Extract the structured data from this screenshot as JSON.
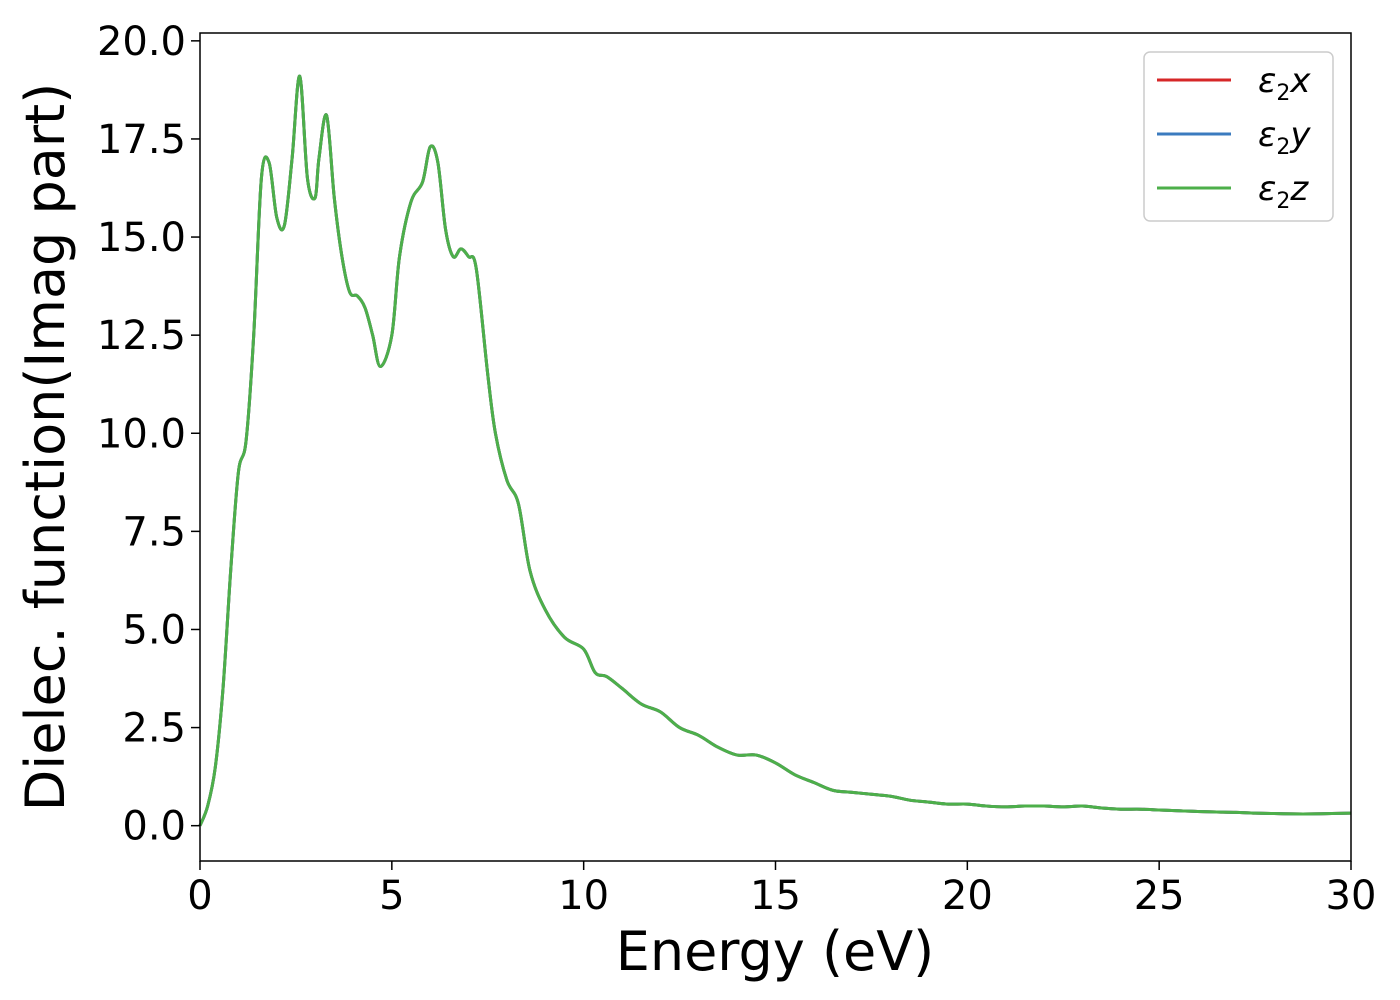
{
  "chart_data": {
    "type": "line",
    "title": "",
    "xlabel": "Energy (eV)",
    "ylabel": "Dielec. function(Imag part)",
    "xlim": [
      0,
      30
    ],
    "ylim": [
      -0.9,
      20.2
    ],
    "xticks": [
      0,
      5,
      10,
      15,
      20,
      25,
      30
    ],
    "yticks": [
      0.0,
      2.5,
      5.0,
      7.5,
      10.0,
      12.5,
      15.0,
      17.5,
      20.0
    ],
    "xtick_labels": [
      "0",
      "5",
      "10",
      "15",
      "20",
      "25",
      "30"
    ],
    "ytick_labels": [
      "0.0",
      "2.5",
      "5.0",
      "7.5",
      "10.0",
      "12.5",
      "15.0",
      "17.5",
      "20.0"
    ],
    "grid": false,
    "legend_position": "top-right",
    "x": [
      0,
      0.2,
      0.4,
      0.6,
      0.8,
      1.0,
      1.2,
      1.4,
      1.6,
      1.8,
      2.0,
      2.2,
      2.4,
      2.6,
      2.8,
      3.0,
      3.1,
      3.3,
      3.5,
      3.7,
      3.9,
      4.1,
      4.3,
      4.5,
      4.7,
      5.0,
      5.2,
      5.5,
      5.8,
      6.0,
      6.2,
      6.4,
      6.6,
      6.8,
      7.0,
      7.2,
      7.5,
      7.7,
      8.0,
      8.3,
      8.6,
      9.0,
      9.5,
      10.0,
      10.3,
      10.6,
      11.0,
      11.5,
      12.0,
      12.5,
      13.0,
      13.5,
      14.0,
      14.5,
      15.0,
      15.5,
      16.0,
      16.5,
      17.0,
      17.5,
      18.0,
      18.5,
      19.0,
      19.5,
      20.0,
      20.5,
      21.0,
      21.5,
      22.0,
      22.5,
      23.0,
      23.5,
      24.0,
      24.5,
      25.0,
      25.5,
      26.0,
      26.5,
      27.0,
      27.5,
      28.0,
      28.5,
      29.0,
      29.5,
      30.0
    ],
    "series": [
      {
        "name": "x",
        "color": "#d62728",
        "values": [
          0.0,
          0.5,
          1.5,
          3.5,
          6.5,
          9.0,
          9.8,
          12.5,
          16.5,
          16.9,
          15.5,
          15.3,
          17.0,
          19.1,
          16.5,
          16.0,
          17.0,
          18.1,
          16.0,
          14.5,
          13.6,
          13.5,
          13.2,
          12.5,
          11.7,
          12.5,
          14.5,
          15.9,
          16.4,
          17.3,
          16.9,
          15.2,
          14.5,
          14.7,
          14.5,
          14.2,
          11.5,
          10.0,
          8.8,
          8.2,
          6.5,
          5.5,
          4.8,
          4.5,
          3.9,
          3.8,
          3.5,
          3.1,
          2.9,
          2.5,
          2.3,
          2.0,
          1.8,
          1.8,
          1.6,
          1.3,
          1.1,
          0.9,
          0.85,
          0.8,
          0.75,
          0.65,
          0.6,
          0.55,
          0.55,
          0.5,
          0.48,
          0.5,
          0.5,
          0.48,
          0.5,
          0.45,
          0.42,
          0.42,
          0.4,
          0.38,
          0.36,
          0.35,
          0.34,
          0.32,
          0.31,
          0.3,
          0.3,
          0.31,
          0.32
        ]
      },
      {
        "name": "y",
        "color": "#3b7bbf",
        "values": [
          0.0,
          0.5,
          1.5,
          3.5,
          6.5,
          9.0,
          9.8,
          12.5,
          16.5,
          16.9,
          15.5,
          15.3,
          17.0,
          19.1,
          16.5,
          16.0,
          17.0,
          18.1,
          16.0,
          14.5,
          13.6,
          13.5,
          13.2,
          12.5,
          11.7,
          12.5,
          14.5,
          15.9,
          16.4,
          17.3,
          16.9,
          15.2,
          14.5,
          14.7,
          14.5,
          14.2,
          11.5,
          10.0,
          8.8,
          8.2,
          6.5,
          5.5,
          4.8,
          4.5,
          3.9,
          3.8,
          3.5,
          3.1,
          2.9,
          2.5,
          2.3,
          2.0,
          1.8,
          1.8,
          1.6,
          1.3,
          1.1,
          0.9,
          0.85,
          0.8,
          0.75,
          0.65,
          0.6,
          0.55,
          0.55,
          0.5,
          0.48,
          0.5,
          0.5,
          0.48,
          0.5,
          0.45,
          0.42,
          0.42,
          0.4,
          0.38,
          0.36,
          0.35,
          0.34,
          0.32,
          0.31,
          0.3,
          0.3,
          0.31,
          0.32
        ]
      },
      {
        "name": "z",
        "color": "#4daf4a",
        "values": [
          0.0,
          0.5,
          1.5,
          3.5,
          6.5,
          9.0,
          9.8,
          12.5,
          16.5,
          16.9,
          15.5,
          15.3,
          17.0,
          19.1,
          16.5,
          16.0,
          17.0,
          18.1,
          16.0,
          14.5,
          13.6,
          13.5,
          13.2,
          12.5,
          11.7,
          12.5,
          14.5,
          15.9,
          16.4,
          17.3,
          16.9,
          15.2,
          14.5,
          14.7,
          14.5,
          14.2,
          11.5,
          10.0,
          8.8,
          8.2,
          6.5,
          5.5,
          4.8,
          4.5,
          3.9,
          3.8,
          3.5,
          3.1,
          2.9,
          2.5,
          2.3,
          2.0,
          1.8,
          1.8,
          1.6,
          1.3,
          1.1,
          0.9,
          0.85,
          0.8,
          0.75,
          0.65,
          0.6,
          0.55,
          0.55,
          0.5,
          0.48,
          0.5,
          0.5,
          0.48,
          0.5,
          0.45,
          0.42,
          0.42,
          0.4,
          0.38,
          0.36,
          0.35,
          0.34,
          0.32,
          0.31,
          0.3,
          0.3,
          0.31,
          0.32
        ]
      }
    ],
    "legend": [
      {
        "symbol": "ε",
        "sub": "2",
        "var": "x",
        "color": "#d62728"
      },
      {
        "symbol": "ε",
        "sub": "2",
        "var": "y",
        "color": "#3b7bbf"
      },
      {
        "symbol": "ε",
        "sub": "2",
        "var": "z",
        "color": "#4daf4a"
      }
    ]
  }
}
